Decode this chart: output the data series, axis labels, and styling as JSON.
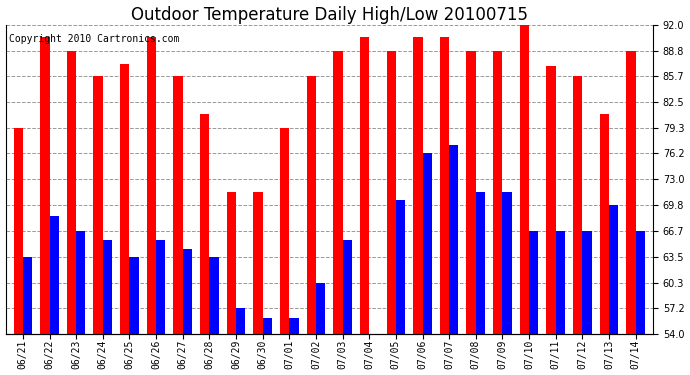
{
  "title": "Outdoor Temperature Daily High/Low 20100715",
  "copyright": "Copyright 2010 Cartronics.com",
  "dates": [
    "06/21",
    "06/22",
    "06/23",
    "06/24",
    "06/25",
    "06/26",
    "06/27",
    "06/28",
    "06/29",
    "06/30",
    "07/01",
    "07/02",
    "07/03",
    "07/04",
    "07/05",
    "07/06",
    "07/07",
    "07/08",
    "07/09",
    "07/10",
    "07/11",
    "07/12",
    "07/13",
    "07/14"
  ],
  "highs": [
    79.3,
    90.5,
    88.8,
    85.7,
    87.2,
    90.5,
    85.7,
    81.0,
    71.5,
    71.5,
    79.3,
    85.7,
    88.8,
    90.5,
    88.8,
    90.5,
    90.5,
    88.8,
    88.8,
    92.0,
    87.0,
    85.7,
    81.0,
    88.8
  ],
  "lows": [
    63.5,
    68.5,
    66.7,
    65.5,
    63.5,
    65.5,
    64.5,
    63.5,
    57.2,
    56.0,
    56.0,
    60.3,
    65.5,
    54.0,
    70.5,
    76.2,
    77.2,
    71.5,
    71.5,
    66.7,
    66.7,
    66.7,
    69.8,
    66.7
  ],
  "ylim_min": 54.0,
  "ylim_max": 92.0,
  "yticks": [
    54.0,
    57.2,
    60.3,
    63.5,
    66.7,
    69.8,
    73.0,
    76.2,
    79.3,
    82.5,
    85.7,
    88.8,
    92.0
  ],
  "high_color": "#ff0000",
  "low_color": "#0000ff",
  "background_color": "#ffffff",
  "grid_color": "#999999",
  "bar_width": 0.35,
  "title_fontsize": 12,
  "tick_fontsize": 7,
  "copyright_fontsize": 7
}
